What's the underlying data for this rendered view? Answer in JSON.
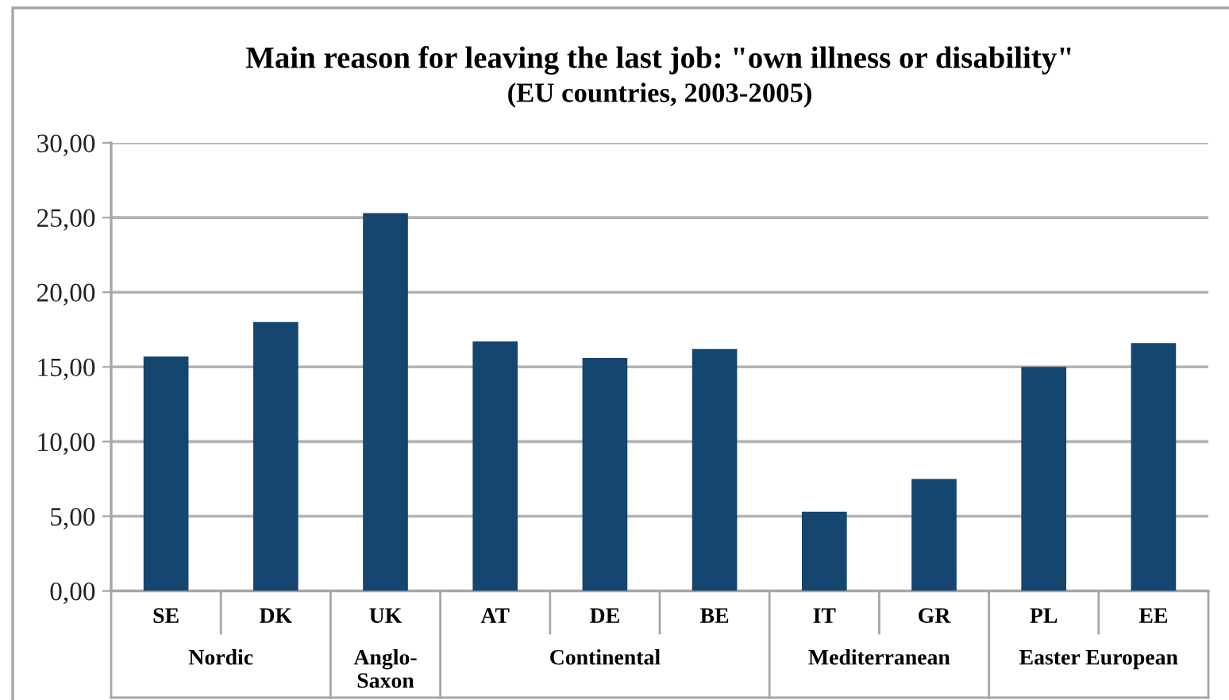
{
  "chart_data": {
    "type": "bar",
    "title": "Main reason for leaving the last job: \"own illness or disability\"",
    "subtitle": "(EU countries, 2003-2005)",
    "categories": [
      "SE",
      "DK",
      "UK",
      "AT",
      "DE",
      "BE",
      "IT",
      "GR",
      "PL",
      "EE"
    ],
    "values": [
      15.7,
      18.0,
      25.3,
      16.7,
      15.6,
      16.2,
      5.3,
      7.5,
      15.0,
      16.6
    ],
    "color": "#15466f",
    "ylim": [
      0,
      30
    ],
    "yticks": [
      {
        "value": 0,
        "label": "0,00"
      },
      {
        "value": 5,
        "label": "5,00"
      },
      {
        "value": 10,
        "label": "10,00"
      },
      {
        "value": 15,
        "label": "15,00"
      },
      {
        "value": 20,
        "label": "20,00"
      },
      {
        "value": 25,
        "label": "25,00"
      },
      {
        "value": 30,
        "label": "30,00"
      }
    ],
    "grid": "y",
    "annotations": [
      "Nordic",
      "Anglo-Saxon",
      "Continental",
      "Mediterranean",
      "Easter European"
    ]
  }
}
